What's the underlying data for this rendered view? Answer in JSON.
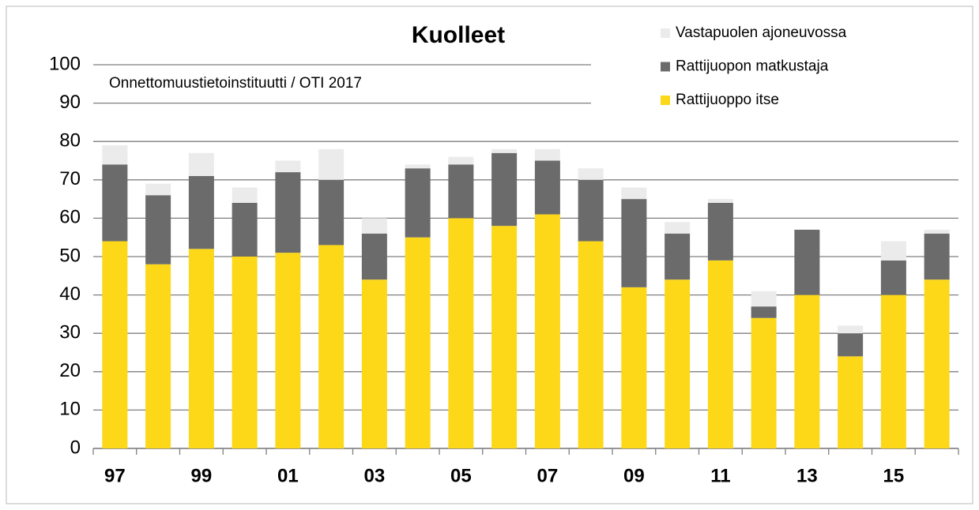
{
  "chart_data": {
    "type": "stacked_bar",
    "title": "Kuolleet",
    "annotation": "Onnettomuustietoinstituutti / OTI 2017",
    "categories": [
      "97",
      null,
      "99",
      null,
      "01",
      null,
      "03",
      null,
      "05",
      null,
      "07",
      null,
      "09",
      null,
      "11",
      null,
      "13",
      null,
      "15",
      null
    ],
    "series": [
      {
        "name": "Rattijuoppo itse",
        "color": "#fcd819",
        "values": [
          54,
          48,
          52,
          50,
          51,
          53,
          44,
          55,
          60,
          58,
          61,
          54,
          42,
          44,
          49,
          34,
          40,
          24,
          40,
          44
        ]
      },
      {
        "name": "Rattijuopon matkustaja",
        "color": "#6b6b6b",
        "values": [
          20,
          18,
          19,
          14,
          21,
          17,
          12,
          18,
          14,
          19,
          14,
          16,
          23,
          12,
          15,
          3,
          17,
          6,
          9,
          12
        ]
      },
      {
        "name": "Vastapuolen ajoneuvossa",
        "color": "#ebebeb",
        "values": [
          5,
          3,
          6,
          4,
          3,
          8,
          4,
          1,
          2,
          1,
          3,
          3,
          3,
          3,
          1,
          4,
          0,
          2,
          5,
          1
        ]
      }
    ],
    "ylim": [
      0,
      100
    ],
    "yticks": [
      0,
      10,
      20,
      30,
      40,
      50,
      60,
      70,
      80,
      90,
      100
    ],
    "grid": true,
    "legend": "upper right"
  }
}
